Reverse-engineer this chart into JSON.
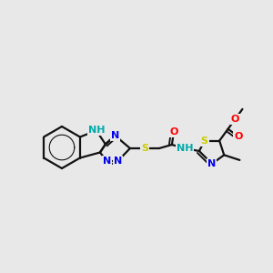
{
  "background_color": "#e8e8e8",
  "fig_width": 3.0,
  "fig_height": 3.0,
  "dpi": 100,
  "atom_colors": {
    "N": "#0000ee",
    "S": "#cccc00",
    "O": "#ff0000",
    "C": "#111111",
    "NH": "#00aaaa",
    "H": "#00aaaa"
  },
  "bond_color": "#111111",
  "bond_lw": 1.6,
  "font_size": 8.0
}
